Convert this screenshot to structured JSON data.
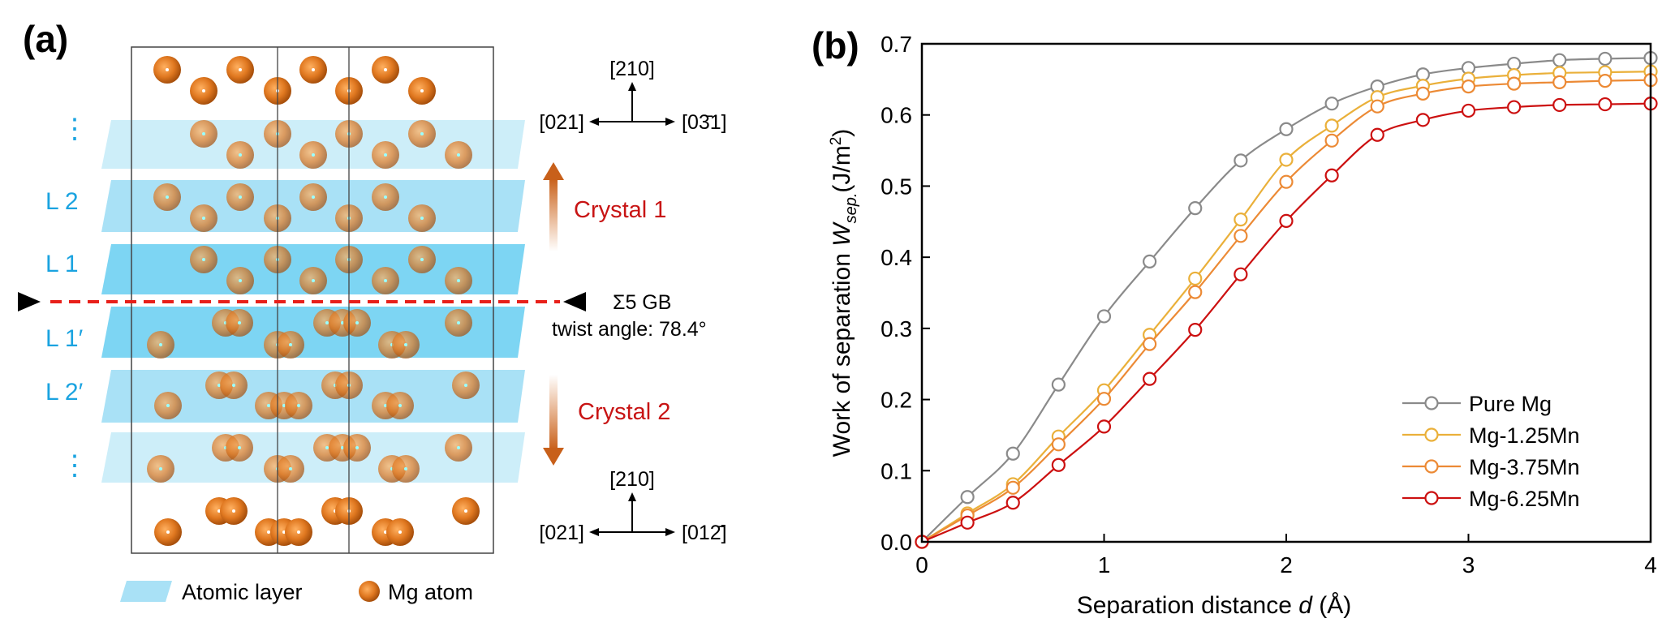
{
  "panel_a": {
    "label": "(a)",
    "layer_labels": [
      "⋮",
      "L 2",
      "L 1",
      "L 1′",
      "L 2′",
      "⋮"
    ],
    "top_axes": {
      "up": "[210]",
      "left": "[021]",
      "right": "[03̄1]"
    },
    "bottom_axes": {
      "up": "[210]",
      "left": "[021]",
      "right": "[012̄]"
    },
    "crystal1": "Crystal 1",
    "crystal2": "Crystal 2",
    "gb_label": "Σ5 GB",
    "twist_label": "twist angle: 78.4°",
    "legend": {
      "layer": "Atomic layer",
      "atom": "Mg atom"
    },
    "colors": {
      "layer_light": "#cdeef9",
      "layer_mid": "#a9e1f6",
      "layer_dark": "#7dd5f3",
      "atom": "#e07820",
      "gb_line": "#e8201a",
      "label_blue": "#1aa3e0",
      "crystal_red": "#c81414"
    }
  },
  "chart_data": {
    "type": "line",
    "panel_label": "(b)",
    "title": "",
    "xlabel": "Separation distance d (Å)",
    "xlabel_parts": {
      "pre": "Separation distance ",
      "italic": "d",
      "post": " (Å)"
    },
    "ylabel": "Work of separation W_sep. (J/m²)",
    "ylabel_parts": {
      "pre": "Work of separation ",
      "italic": "W",
      "sub": "sep.",
      "unit_pre": "(J/m",
      "sup": "2",
      "unit_post": ")"
    },
    "xlim": [
      0,
      4
    ],
    "ylim": [
      0,
      0.7
    ],
    "xticks": [
      "0",
      "1",
      "2",
      "3",
      "4"
    ],
    "yticks": [
      "0.0",
      "0.1",
      "0.2",
      "0.3",
      "0.4",
      "0.5",
      "0.6",
      "0.7"
    ],
    "grid": false,
    "legend_position": "bottom-right",
    "x": [
      0,
      0.25,
      0.5,
      0.75,
      1.0,
      1.25,
      1.5,
      1.75,
      2.0,
      2.25,
      2.5,
      2.75,
      3.0,
      3.25,
      3.5,
      3.75,
      4.0
    ],
    "series": [
      {
        "name": "Pure Mg",
        "color": "#8a8a8a",
        "values": [
          0,
          0.063,
          0.124,
          0.221,
          0.317,
          0.394,
          0.469,
          0.536,
          0.58,
          0.616,
          0.64,
          0.657,
          0.666,
          0.672,
          0.677,
          0.679,
          0.68
        ]
      },
      {
        "name": "Mg-1.25Mn",
        "color": "#eab03a",
        "values": [
          0,
          0.04,
          0.081,
          0.148,
          0.213,
          0.291,
          0.37,
          0.453,
          0.537,
          0.585,
          0.625,
          0.641,
          0.651,
          0.656,
          0.659,
          0.66,
          0.661
        ]
      },
      {
        "name": "Mg-3.75Mn",
        "color": "#ec8a35",
        "values": [
          0,
          0.037,
          0.076,
          0.137,
          0.201,
          0.278,
          0.351,
          0.43,
          0.506,
          0.564,
          0.612,
          0.63,
          0.64,
          0.644,
          0.646,
          0.648,
          0.649
        ]
      },
      {
        "name": "Mg-6.25Mn",
        "color": "#cc1010",
        "values": [
          0,
          0.027,
          0.055,
          0.108,
          0.162,
          0.229,
          0.298,
          0.376,
          0.451,
          0.515,
          0.572,
          0.593,
          0.606,
          0.611,
          0.614,
          0.615,
          0.616
        ]
      }
    ]
  }
}
